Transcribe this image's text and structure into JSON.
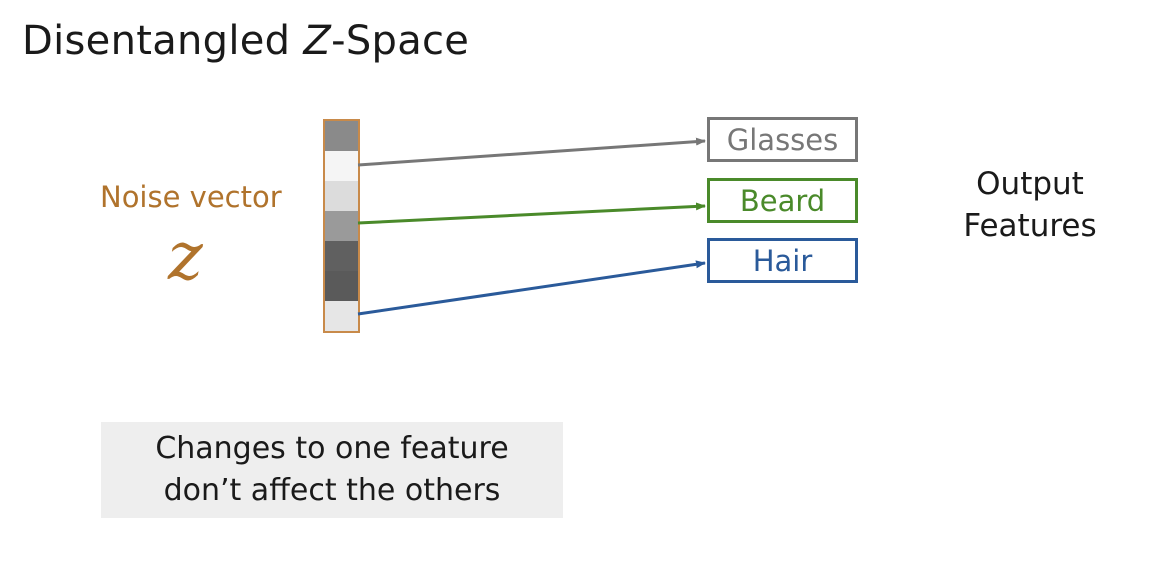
{
  "title": {
    "prefix": "Disentangled ",
    "z": "Z",
    "suffix": "-Space"
  },
  "noise": {
    "label": "Noise vector",
    "symbol": "z",
    "color": "#b0732c",
    "cells": [
      "#8a8a8a",
      "#f5f5f5",
      "#dcdcdc",
      "#9a9a9a",
      "#606060",
      "#5a5a5a",
      "#e6e6e6"
    ]
  },
  "features": [
    {
      "label": "Glasses",
      "color": "#777777"
    },
    {
      "label": "Beard",
      "color": "#4a8a2a"
    },
    {
      "label": "Hair",
      "color": "#2a5a9a"
    }
  ],
  "output": {
    "line1": "Output",
    "line2": "Features"
  },
  "note": {
    "line1": "Changes to one feature",
    "line2": "don’t affect the others"
  }
}
